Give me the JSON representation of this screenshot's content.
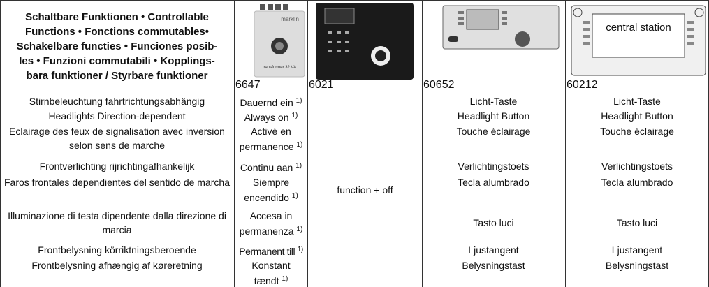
{
  "header": {
    "title_lines": [
      "Schaltbare Funktionen • Controllable",
      "Functions • Fonctions commutables•",
      "Schakelbare functies • Funciones posib-",
      "les • Funzioni commutabili • Kopplings-",
      "bara funktioner / Styrbare funktioner"
    ],
    "products": [
      {
        "number": "6647",
        "brand": "märklin",
        "image_text": "transformer 32 VA"
      },
      {
        "number": "6021"
      },
      {
        "number": "60652"
      },
      {
        "number": "60212",
        "image_text": "central station"
      }
    ]
  },
  "body_6021": "function + off",
  "rows": [
    {
      "label": "Stirnbeleuchtung fahrtrichtungsabhängig",
      "c6647": {
        "text": "Dauernd ein",
        "note": "1)"
      },
      "c60652": "Licht-Taste",
      "c60212": "Licht-Taste"
    },
    {
      "label": "Headlights Direction-dependent",
      "c6647": {
        "text": "Always on",
        "note": "1)"
      },
      "c60652": "Headlight Button",
      "c60212": "Headlight Button"
    },
    {
      "label": "Eclairage des feux de signalisation avec inversion selon sens de marche",
      "c6647": {
        "text": "Activé en permanence",
        "note": "1)"
      },
      "c60652": "Touche éclairage",
      "c60212": "Touche éclairage"
    },
    {
      "label": "Frontverlichting rijrichtingafhankelijk",
      "c6647": {
        "text": "Continu aan",
        "note": "1)"
      },
      "c60652": "Verlichtingstoets",
      "c60212": "Verlichtingstoets"
    },
    {
      "label": "Faros frontales dependientes del sentido de marcha",
      "c6647": {
        "text": "Siempre encendido",
        "note": "1)"
      },
      "c60652": "Tecla alumbrado",
      "c60212": "Tecla alumbrado"
    },
    {
      "label": "Illuminazione di testa dipendente dalla direzione di marcia",
      "c6647": {
        "text": "Accesa in permanenza",
        "note": "1)"
      },
      "c60652": "Tasto luci",
      "c60212": "Tasto luci"
    },
    {
      "label": "Frontbelysning körriktningsberoende",
      "c6647": {
        "text": "Permanent till",
        "note": "1)"
      },
      "c60652": "Ljustangent",
      "c60212": "Ljustangent"
    },
    {
      "label": "Frontbelysning afhængig af køreretning",
      "c6647": {
        "text": "Konstant tændt",
        "note": "1)"
      },
      "c60652": "Belysningstast",
      "c60212": "Belysningstast"
    }
  ]
}
